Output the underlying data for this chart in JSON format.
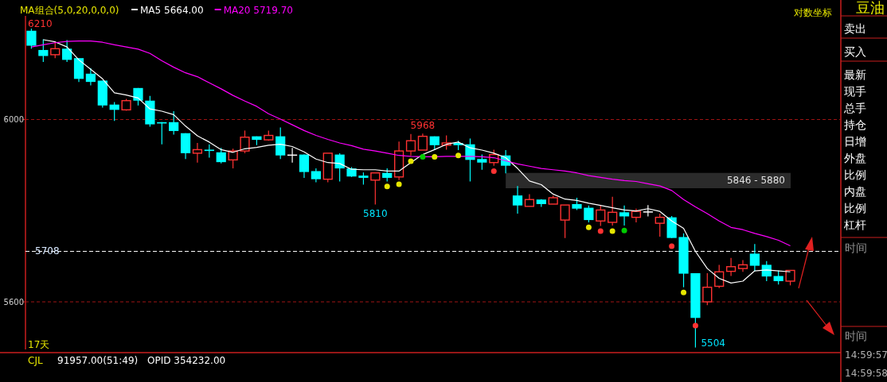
{
  "chart_data": {
    "type": "candlestick",
    "title": "豆油",
    "categories": [
      null,
      null,
      null,
      null,
      null,
      null,
      null,
      null,
      null,
      null,
      null,
      null,
      null,
      null,
      null,
      null,
      null,
      null,
      null,
      null,
      null,
      null,
      null,
      null,
      null,
      null,
      null,
      null,
      null,
      null,
      null,
      null,
      null,
      null,
      null,
      null,
      null,
      null,
      null,
      null,
      null,
      null,
      null,
      null,
      null,
      null,
      null,
      null,
      null,
      null,
      null,
      null,
      null,
      null,
      null,
      null,
      null,
      null,
      null,
      null,
      null,
      null,
      null,
      null,
      null
    ],
    "ohlc": [
      [
        6205,
        6210,
        6163,
        6170
      ],
      [
        6160,
        6185,
        6132,
        6146
      ],
      [
        6149,
        6180,
        6141,
        6163
      ],
      [
        6163,
        6183,
        6132,
        6137
      ],
      [
        6141,
        6141,
        6086,
        6093
      ],
      [
        6105,
        6118,
        6078,
        6086
      ],
      [
        6089,
        6089,
        6027,
        6032
      ],
      [
        6034,
        6040,
        5997,
        6022
      ],
      [
        6022,
        6047,
        6020,
        6043
      ],
      [
        6072,
        6072,
        6032,
        6043
      ],
      [
        6043,
        6054,
        5984,
        5989
      ],
      [
        5994,
        5994,
        5944,
        5991
      ],
      [
        5994,
        6019,
        5966,
        5974
      ],
      [
        5969,
        5969,
        5911,
        5924
      ],
      [
        5924,
        5947,
        5903,
        5932
      ],
      [
        5932,
        5944,
        5914,
        5929
      ],
      [
        5926,
        5936,
        5901,
        5904
      ],
      [
        5909,
        5934,
        5890,
        5929
      ],
      [
        5929,
        5975,
        5924,
        5960
      ],
      [
        5962,
        5962,
        5942,
        5954
      ],
      [
        5954,
        5975,
        5952,
        5964
      ],
      [
        5962,
        5982,
        5911,
        5919
      ],
      [
        5921,
        5936,
        5903,
        5921
      ],
      [
        5921,
        5921,
        5869,
        5882
      ],
      [
        5884,
        5890,
        5859,
        5866
      ],
      [
        5866,
        5924,
        5859,
        5924
      ],
      [
        5921,
        5924,
        5861,
        5890
      ],
      [
        5890,
        5893,
        5871,
        5872
      ],
      [
        5874,
        5881,
        5854,
        5869
      ],
      [
        5864,
        5880,
        5810,
        5880
      ],
      [
        5880,
        5890,
        5861,
        5869
      ],
      [
        5871,
        5950,
        5864,
        5929
      ],
      [
        5929,
        5967,
        5919,
        5952
      ],
      [
        5931,
        5968,
        5931,
        5962
      ],
      [
        5962,
        5962,
        5931,
        5942
      ],
      [
        5942,
        5964,
        5932,
        5947
      ],
      [
        5947,
        5952,
        5931,
        5942
      ],
      [
        5944,
        5957,
        5861,
        5909
      ],
      [
        5911,
        5921,
        5887,
        5903
      ],
      [
        5903,
        5932,
        5896,
        5921
      ],
      [
        5919,
        5931,
        5879,
        5896
      ],
      [
        5830,
        5851,
        5790,
        5808
      ],
      [
        5806,
        5833,
        5806,
        5821
      ],
      [
        5821,
        5822,
        5805,
        5811
      ],
      [
        5811,
        5830,
        5811,
        5825
      ],
      [
        5776,
        5809,
        5737,
        5809
      ],
      [
        5811,
        5825,
        5798,
        5801
      ],
      [
        5803,
        5808,
        5771,
        5776
      ],
      [
        5774,
        5809,
        5763,
        5798
      ],
      [
        5771,
        5827,
        5764,
        5793
      ],
      [
        5793,
        5808,
        5764,
        5784
      ],
      [
        5782,
        5801,
        5771,
        5795
      ],
      [
        5795,
        5809,
        5784,
        5795
      ],
      [
        5769,
        5790,
        5740,
        5782
      ],
      [
        5782,
        5785,
        5737,
        5737
      ],
      [
        5739,
        5747,
        5631,
        5660
      ],
      [
        5661,
        5661,
        5504,
        5566
      ],
      [
        5600,
        5661,
        5593,
        5631
      ],
      [
        5633,
        5679,
        5629,
        5664
      ],
      [
        5665,
        5694,
        5655,
        5675
      ],
      [
        5671,
        5689,
        5664,
        5679
      ],
      [
        5703,
        5724,
        5665,
        5677
      ],
      [
        5679,
        5687,
        5644,
        5654
      ],
      [
        5655,
        5667,
        5637,
        5644
      ],
      [
        5644,
        5667,
        5635,
        5667
      ]
    ],
    "colors": [
      "#00ffff",
      "#00ffff",
      "#ff3232",
      "#00ffff",
      "#00ffff",
      "#00ffff",
      "#00ffff",
      "#00ffff",
      "#ff3232",
      "#00ffff",
      "#00ffff",
      "#00ffff",
      "#00ffff",
      "#00ffff",
      "#ff3232",
      "#00ffff",
      "#00ffff",
      "#ff3232",
      "#ff3232",
      "#00ffff",
      "#ff3232",
      "#00ffff",
      "#ffffff",
      "#00ffff",
      "#00ffff",
      "#ff3232",
      "#00ffff",
      "#00ffff",
      "#00ffff",
      "#ff3232",
      "#00ffff",
      "#ff3232",
      "#ff3232",
      "#ff3232",
      "#00ffff",
      "#ff3232",
      "#00ffff",
      "#00ffff",
      "#00ffff",
      "#ff3232",
      "#00ffff",
      "#00ffff",
      "#ff3232",
      "#00ffff",
      "#ff3232",
      "#ff3232",
      "#00ffff",
      "#00ffff",
      "#ff3232",
      "#ff3232",
      "#00ffff",
      "#ff3232",
      "#ffffff",
      "#ff3232",
      "#00ffff",
      "#00ffff",
      "#00ffff",
      "#ff3232",
      "#ff3232",
      "#ff3232",
      "#ff3232",
      "#00ffff",
      "#00ffff",
      "#00ffff",
      "#ff3232"
    ],
    "series": [
      {
        "type": "line",
        "name": "MA5 5664.00",
        "color": "#ffffff",
        "marker": "none",
        "values": [
          null,
          6184,
          6179,
          6167,
          6137,
          6115,
          6093,
          6061,
          6056,
          6049,
          6024,
          6019,
          6011,
          5985,
          5963,
          5949,
          5932,
          5926,
          5934,
          5937,
          5942,
          5944,
          5939,
          5927,
          5911,
          5903,
          5901,
          5888,
          5887,
          5887,
          5884,
          5884,
          5903,
          5921,
          5932,
          5944,
          5949,
          5936,
          5931,
          5924,
          5914,
          5890,
          5862,
          5854,
          5833,
          5822,
          5819,
          5813,
          5808,
          5803,
          5798,
          5796,
          5801,
          5795,
          5774,
          5758,
          5708,
          5671,
          5650,
          5640,
          5644,
          5666,
          5668,
          5666,
          5664
        ]
      },
      {
        "type": "line",
        "name": "MA20 5719.70",
        "color": "#ff00ff",
        "marker": "none",
        "values": [
          6167,
          6172,
          6177,
          6180,
          6181,
          6181,
          6178,
          6172,
          6167,
          6162,
          6152,
          6135,
          6120,
          6107,
          6098,
          6084,
          6070,
          6055,
          6042,
          6030,
          6013,
          6001,
          5988,
          5975,
          5964,
          5955,
          5947,
          5941,
          5933,
          5929,
          5924,
          5919,
          5917,
          5916,
          5916,
          5917,
          5917,
          5917,
          5916,
          5914,
          5907,
          5900,
          5895,
          5890,
          5887,
          5884,
          5880,
          5874,
          5870,
          5866,
          5863,
          5861,
          5856,
          5851,
          5841,
          5821,
          5805,
          5790,
          5774,
          5760,
          5755,
          5747,
          5740,
          5732,
          5720
        ]
      },
      {
        "type": "scatter",
        "color": "#e6e600",
        "values": [
          null,
          null,
          null,
          null,
          null,
          null,
          null,
          null,
          null,
          null,
          null,
          null,
          null,
          null,
          null,
          null,
          null,
          null,
          null,
          null,
          null,
          null,
          null,
          null,
          null,
          null,
          null,
          null,
          null,
          null,
          5850,
          5855,
          5906,
          null,
          5916,
          null,
          5919,
          null,
          null,
          null,
          null,
          null,
          null,
          null,
          null,
          null,
          null,
          5760,
          null,
          5752,
          null,
          null,
          null,
          null,
          null,
          5620,
          null,
          null,
          null,
          null,
          null,
          null,
          null,
          null,
          null
        ]
      },
      {
        "type": "scatter",
        "color": "#00cc00",
        "values": [
          null,
          null,
          null,
          null,
          null,
          null,
          null,
          null,
          null,
          null,
          null,
          null,
          null,
          null,
          null,
          null,
          null,
          null,
          null,
          null,
          null,
          null,
          null,
          null,
          null,
          null,
          null,
          null,
          null,
          null,
          null,
          null,
          null,
          5916,
          null,
          null,
          null,
          null,
          null,
          null,
          null,
          null,
          null,
          null,
          null,
          null,
          null,
          null,
          null,
          null,
          5753,
          null,
          null,
          null,
          null,
          null,
          null,
          null,
          null,
          null,
          null,
          null,
          null,
          null,
          null
        ]
      },
      {
        "type": "scatter",
        "color": "#ff3232",
        "values": [
          null,
          null,
          null,
          null,
          null,
          null,
          null,
          null,
          null,
          null,
          null,
          null,
          null,
          null,
          null,
          null,
          null,
          null,
          null,
          null,
          null,
          null,
          null,
          null,
          null,
          null,
          null,
          null,
          null,
          null,
          null,
          null,
          null,
          null,
          null,
          null,
          null,
          null,
          null,
          5884,
          null,
          null,
          null,
          null,
          null,
          null,
          null,
          null,
          5752,
          null,
          null,
          null,
          null,
          null,
          5719,
          null,
          5550,
          null,
          null,
          null,
          null,
          null,
          null,
          null,
          null
        ]
      }
    ],
    "marker": "circle",
    "legend": "top left",
    "log": true,
    "ylim": [
      5500,
      6240
    ],
    "yticks": [
      5600,
      6000
    ],
    "grid": "y",
    "ref_lines": [
      {
        "axis": "y",
        "value": 5708,
        "label": "5708",
        "color": "#ffffff",
        "line_style": "dashed"
      }
    ],
    "bands": [
      {
        "axis": "y",
        "from": 5846,
        "to": 5880,
        "label": "5846 - 5880",
        "color": "#2b2b2b"
      }
    ],
    "annotations": [
      "MA组合(5,0,20,0,0,0)",
      "对数坐标",
      "17天",
      "CJL",
      "91957.00(51:49)",
      "OPID 354232.00",
      "卖出",
      "买入",
      "最新",
      "现手",
      "总手",
      "持仓",
      "日增",
      "外盘",
      "比例",
      "内盘",
      "比例",
      "杠杆",
      "时间",
      "时间",
      "14:59:57",
      "14:59:58",
      "6210",
      "5504",
      {
        "text": "5968",
        "y": 5968
      },
      {
        "text": "5810",
        "y": 5810
      }
    ]
  }
}
